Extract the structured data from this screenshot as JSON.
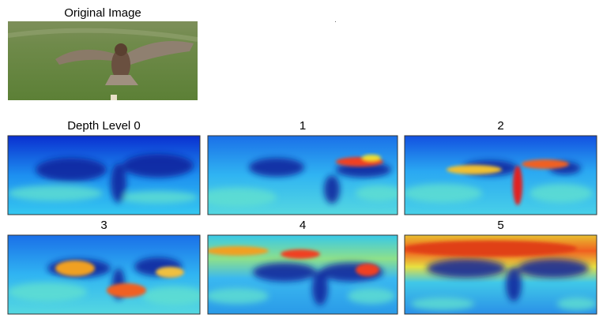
{
  "figure": {
    "original": {
      "title": "Original Image"
    },
    "panels": [
      {
        "title": "Depth Level 0"
      },
      {
        "title": "1"
      },
      {
        "title": "2"
      },
      {
        "title": "3"
      },
      {
        "title": "4"
      },
      {
        "title": "5"
      }
    ]
  }
}
